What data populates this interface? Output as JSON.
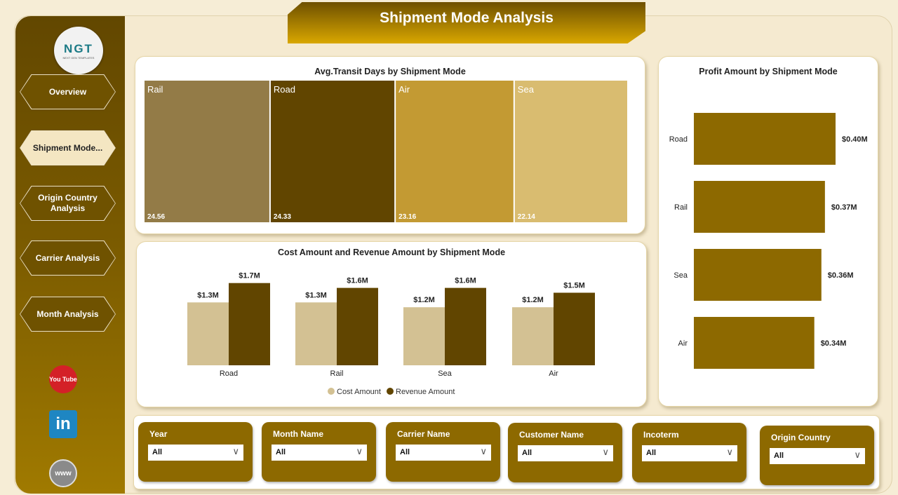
{
  "title": "Shipment Mode Analysis",
  "logo": {
    "text": "NGT",
    "subtitle": "NEXT GEN TEMPLATES"
  },
  "nav": [
    {
      "label": "Overview"
    },
    {
      "label": "Shipment Mode..."
    },
    {
      "label": "Origin Country Analysis"
    },
    {
      "label": "Carrier Analysis"
    },
    {
      "label": "Month Analysis"
    }
  ],
  "social": [
    {
      "icon": "youtube-icon",
      "label": "You Tube"
    },
    {
      "icon": "linkedin-icon",
      "label": "in"
    },
    {
      "icon": "globe-icon",
      "label": "www"
    }
  ],
  "filters": [
    {
      "label": "Year",
      "value": "All"
    },
    {
      "label": "Month Name",
      "value": "All"
    },
    {
      "label": "Carrier Name",
      "value": "All"
    },
    {
      "label": "Customer Name",
      "value": "All"
    },
    {
      "label": "Incoterm",
      "value": "All"
    },
    {
      "label": "Origin Country",
      "value": "All"
    }
  ],
  "chart_data": [
    {
      "type": "treemap",
      "title": "Avg.Transit Days by Shipment Mode",
      "categories": [
        "Rail",
        "Road",
        "Air",
        "Sea"
      ],
      "values": [
        24.56,
        24.33,
        23.16,
        22.14
      ],
      "value_labels": [
        "24.56",
        "24.33",
        "23.16",
        "22.14"
      ],
      "colors": [
        "#937b47",
        "#614500",
        "#c39a33",
        "#d9bc70"
      ]
    },
    {
      "type": "bar",
      "title": "Cost Amount and Revenue Amount by Shipment Mode",
      "categories": [
        "Road",
        "Rail",
        "Sea",
        "Air"
      ],
      "series": [
        {
          "name": "Cost Amount",
          "values": [
            1.3,
            1.3,
            1.2,
            1.2
          ],
          "labels": [
            "$1.3M",
            "$1.3M",
            "$1.2M",
            "$1.2M"
          ],
          "color": "#d3c193"
        },
        {
          "name": "Revenue Amount",
          "values": [
            1.7,
            1.6,
            1.6,
            1.5
          ],
          "labels": [
            "$1.7M",
            "$1.6M",
            "$1.6M",
            "$1.5M"
          ],
          "color": "#614500"
        }
      ],
      "unit": "$M",
      "legend": "bottom-center"
    },
    {
      "type": "bar",
      "orientation": "horizontal",
      "title": "Profit Amount by Shipment Mode",
      "categories": [
        "Road",
        "Rail",
        "Sea",
        "Air"
      ],
      "values": [
        0.4,
        0.37,
        0.36,
        0.34
      ],
      "labels": [
        "$0.40M",
        "$0.37M",
        "$0.36M",
        "$0.34M"
      ],
      "color": "#8d6900",
      "unit": "$M"
    }
  ]
}
